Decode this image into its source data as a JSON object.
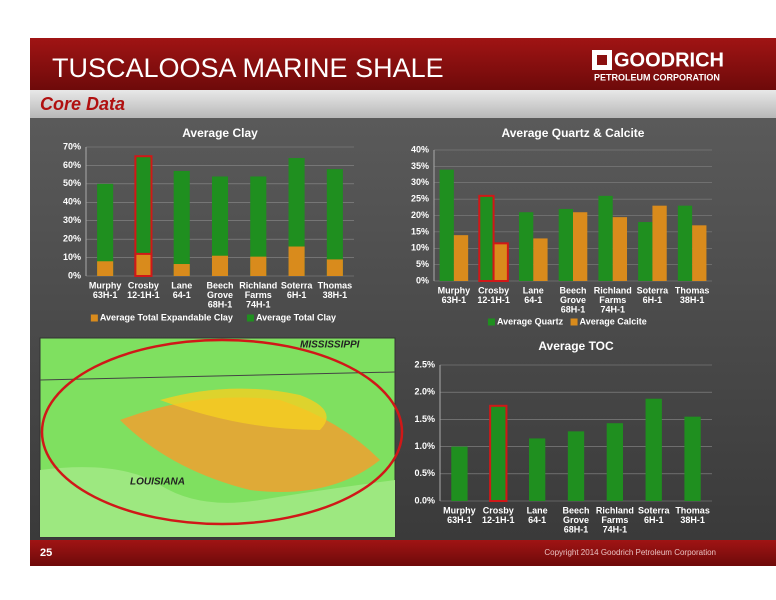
{
  "slide": {
    "title": "TUSCALOOSA MARINE SHALE",
    "subtitle": "Core Data",
    "logo": [
      "GOODRICH",
      "PETROLEUM CORPORATION"
    ],
    "page": "25",
    "copyright": "Copyright 2014 Goodrich Petroleum Corporation"
  },
  "map": {
    "labels": [
      "MISSISSIPPI",
      "LOUISIANA"
    ]
  },
  "chart_data": [
    {
      "type": "bar",
      "barmode": "overlay",
      "title": "Average Clay",
      "categories": [
        [
          "Murphy",
          "63H-1"
        ],
        [
          "Crosby",
          "12-1H-1"
        ],
        [
          "Lane",
          "64-1"
        ],
        [
          "Beech",
          "Grove",
          "68H-1"
        ],
        [
          "Richland",
          "Farms",
          "74H-1"
        ],
        [
          "Soterra",
          "6H-1"
        ],
        [
          "Thomas",
          "38H-1"
        ]
      ],
      "series": [
        {
          "name": "Average Total Expandable Clay",
          "color": "#d98b1c",
          "values": [
            8,
            12,
            6.5,
            11,
            10.5,
            16,
            9
          ]
        },
        {
          "name": "Average Total Clay",
          "color": "#1f8f1f",
          "values": [
            50,
            65,
            57,
            54,
            54,
            64,
            58
          ]
        }
      ],
      "highlight": 1,
      "highlight_color": "#d01818",
      "ylim": [
        0,
        70
      ],
      "yticks": [
        {
          "value": 0,
          "label": "0%"
        },
        {
          "value": 10,
          "label": "10%"
        },
        {
          "value": 20,
          "label": "20%"
        },
        {
          "value": 30,
          "label": "30%"
        },
        {
          "value": 40,
          "label": "40%"
        },
        {
          "value": 50,
          "label": "50%"
        },
        {
          "value": 60,
          "label": "60%"
        },
        {
          "value": 70,
          "label": "70%"
        }
      ],
      "grid": true
    },
    {
      "type": "bar",
      "barmode": "group",
      "title": "Average  Quartz & Calcite",
      "categories": [
        [
          "Murphy",
          "63H-1"
        ],
        [
          "Crosby",
          "12-1H-1"
        ],
        [
          "Lane",
          "64-1"
        ],
        [
          "Beech",
          "Grove",
          "68H-1"
        ],
        [
          "Richland",
          "Farms",
          "74H-1"
        ],
        [
          "Soterra",
          "6H-1"
        ],
        [
          "Thomas",
          "38H-1"
        ]
      ],
      "series": [
        {
          "name": "Average Quartz",
          "color": "#1f8f1f",
          "values": [
            34,
            26,
            21,
            22,
            26,
            18,
            23
          ]
        },
        {
          "name": "Average Calcite",
          "color": "#d98b1c",
          "values": [
            14,
            11.5,
            13,
            21,
            19.5,
            23,
            17
          ]
        }
      ],
      "highlight": 1,
      "highlight_color": "#d01818",
      "ylim": [
        0,
        40
      ],
      "yticks": [
        {
          "value": 0,
          "label": "0%"
        },
        {
          "value": 5,
          "label": "5%"
        },
        {
          "value": 10,
          "label": "10%"
        },
        {
          "value": 15,
          "label": "15%"
        },
        {
          "value": 20,
          "label": "20%"
        },
        {
          "value": 25,
          "label": "25%"
        },
        {
          "value": 30,
          "label": "30%"
        },
        {
          "value": 35,
          "label": "35%"
        },
        {
          "value": 40,
          "label": "40%"
        }
      ],
      "grid": true
    },
    {
      "type": "bar",
      "barmode": "group",
      "title": "Average TOC",
      "categories": [
        [
          "Murphy",
          "63H-1"
        ],
        [
          "Crosby",
          "12-1H-1"
        ],
        [
          "Lane",
          "64-1"
        ],
        [
          "Beech",
          "Grove",
          "68H-1"
        ],
        [
          "Richland",
          "Farms",
          "74H-1"
        ],
        [
          "Soterra",
          "6H-1"
        ],
        [
          "Thomas",
          "38H-1"
        ]
      ],
      "series": [
        {
          "color": "#1f8f1f",
          "values": [
            1.0,
            1.75,
            1.15,
            1.28,
            1.43,
            1.88,
            1.55
          ]
        }
      ],
      "highlight": 1,
      "highlight_color": "#d01818",
      "ylim": [
        0,
        2.5
      ],
      "yticks": [
        {
          "value": 0,
          "label": "0.0%"
        },
        {
          "value": 0.5,
          "label": "0.5%"
        },
        {
          "value": 1,
          "label": "1.0%"
        },
        {
          "value": 1.5,
          "label": "1.5%"
        },
        {
          "value": 2,
          "label": "2.0%"
        },
        {
          "value": 2.5,
          "label": "2.5%"
        }
      ],
      "grid": true
    }
  ]
}
